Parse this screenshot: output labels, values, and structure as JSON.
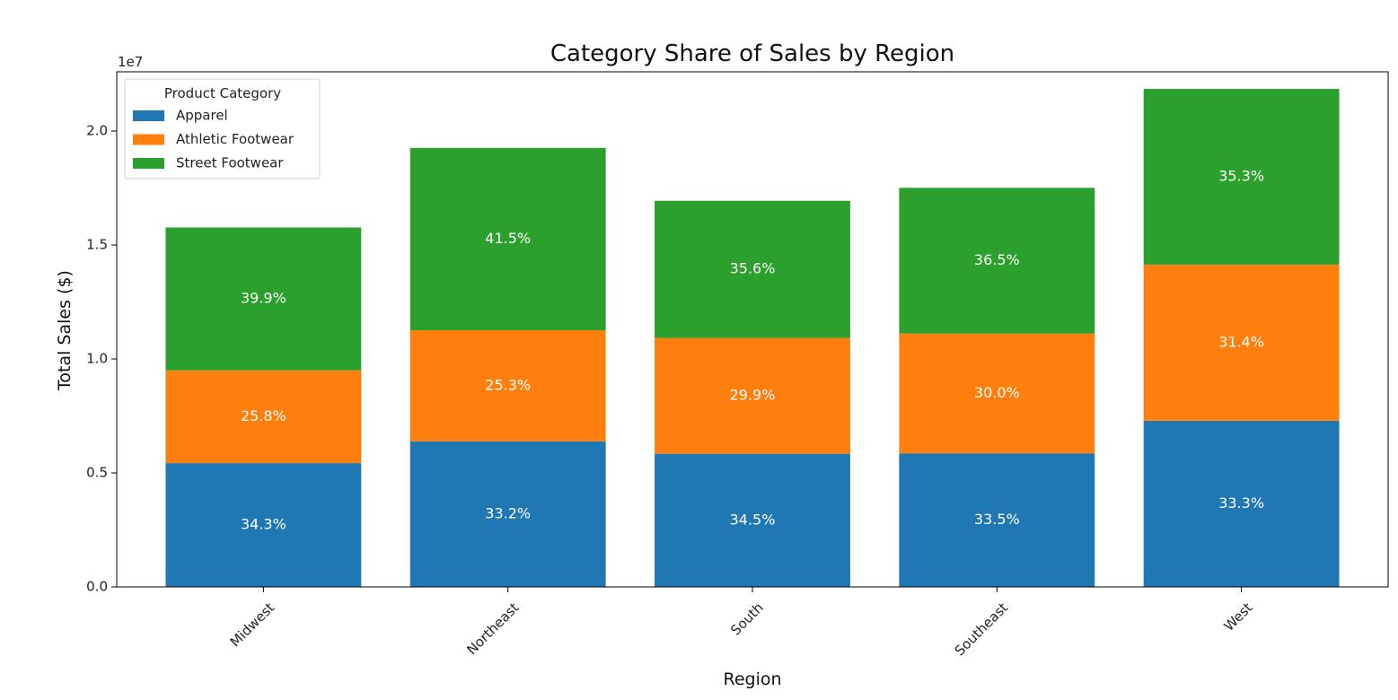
{
  "chart_data": {
    "type": "bar",
    "stacked": true,
    "title": "Category Share of Sales by Region",
    "xlabel": "Region",
    "ylabel": "Total Sales ($)",
    "y_offset_label": "1e7",
    "ylim": [
      0,
      22600000
    ],
    "yticks": [
      {
        "value": 0,
        "label": "0.0"
      },
      {
        "value": 5000000,
        "label": "0.5"
      },
      {
        "value": 10000000,
        "label": "1.0"
      },
      {
        "value": 15000000,
        "label": "1.5"
      },
      {
        "value": 20000000,
        "label": "2.0"
      }
    ],
    "categories": [
      "Midwest",
      "Northeast",
      "South",
      "Southeast",
      "West"
    ],
    "grid": false,
    "legend": {
      "title": "Product Category",
      "placement": "upper-left"
    },
    "series": [
      {
        "name": "Apparel",
        "color": "#1f77b4",
        "values": [
          5430000,
          6390000,
          5840000,
          5860000,
          7290000
        ],
        "labels": [
          "34.3%",
          "33.2%",
          "34.5%",
          "33.5%",
          "33.3%"
        ]
      },
      {
        "name": "Athletic Footwear",
        "color": "#ff7f0e",
        "values": [
          4070000,
          4870000,
          5080000,
          5260000,
          6850000
        ],
        "labels": [
          "25.8%",
          "25.3%",
          "29.9%",
          "30.0%",
          "31.4%"
        ]
      },
      {
        "name": "Street Footwear",
        "color": "#2ca02c",
        "values": [
          6270000,
          8000000,
          6020000,
          6390000,
          7710000
        ],
        "labels": [
          "39.9%",
          "41.5%",
          "35.6%",
          "36.5%",
          "35.3%"
        ]
      }
    ]
  }
}
